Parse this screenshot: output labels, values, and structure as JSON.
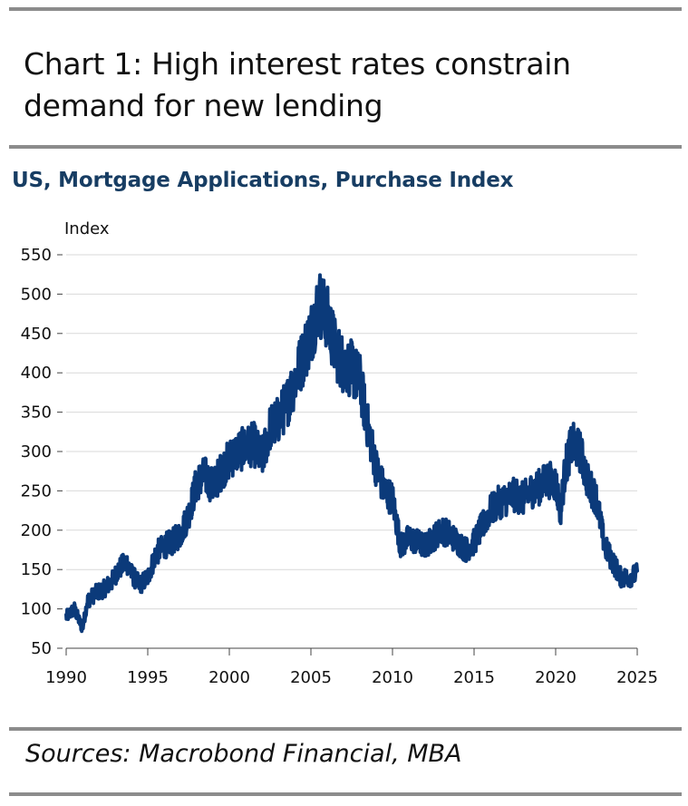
{
  "header": {
    "title_line1": "Chart 1: High interest rates constrain",
    "title_line2": "demand for new lending"
  },
  "footer": {
    "source": "Sources: Macrobond Financial, MBA"
  },
  "colors": {
    "series": "#0b3a7a",
    "rule": "#8c8c8c",
    "subtitle": "#173d63",
    "grid": "#d9d9d9"
  },
  "chart_data": {
    "type": "line",
    "title": "US, Mortgage Applications, Purchase Index",
    "ylabel": "Index",
    "xlabel": "",
    "xlim": [
      1990,
      2025
    ],
    "ylim": [
      50,
      550
    ],
    "yticks": [
      50,
      100,
      150,
      200,
      250,
      300,
      350,
      400,
      450,
      500,
      550
    ],
    "xticks": [
      1990,
      1995,
      2000,
      2005,
      2010,
      2015,
      2020,
      2025
    ],
    "grid": true,
    "legend": "none",
    "series": [
      {
        "name": "Purchase Index",
        "x": [
          1990.0,
          1990.5,
          1991.0,
          1991.3,
          1991.8,
          1992.3,
          1992.8,
          1993.2,
          1993.7,
          1994.0,
          1994.5,
          1995.0,
          1995.5,
          1996.0,
          1996.5,
          1997.0,
          1997.5,
          1998.0,
          1998.5,
          1999.0,
          1999.5,
          2000.0,
          2000.5,
          2001.0,
          2001.5,
          2002.0,
          2002.5,
          2003.0,
          2003.5,
          2004.0,
          2004.5,
          2005.0,
          2005.5,
          2006.0,
          2006.5,
          2007.0,
          2007.5,
          2008.0,
          2008.5,
          2009.0,
          2009.5,
          2010.0,
          2010.5,
          2011.0,
          2011.5,
          2012.0,
          2012.5,
          2013.0,
          2013.5,
          2014.0,
          2014.5,
          2015.0,
          2015.5,
          2016.0,
          2016.5,
          2017.0,
          2017.5,
          2018.0,
          2018.5,
          2019.0,
          2019.5,
          2020.0,
          2020.3,
          2020.6,
          2021.0,
          2021.5,
          2022.0,
          2022.5,
          2023.0,
          2023.5,
          2024.0,
          2024.5,
          2025.0
        ],
        "values": [
          90,
          100,
          75,
          110,
          120,
          125,
          135,
          150,
          160,
          145,
          130,
          140,
          170,
          180,
          185,
          195,
          220,
          260,
          270,
          255,
          275,
          290,
          300,
          305,
          310,
          290,
          330,
          340,
          360,
          390,
          420,
          450,
          490,
          470,
          430,
          410,
          405,
          390,
          330,
          280,
          250,
          240,
          180,
          190,
          185,
          180,
          190,
          200,
          195,
          185,
          175,
          185,
          205,
          225,
          235,
          240,
          245,
          240,
          250,
          255,
          265,
          260,
          225,
          280,
          310,
          300,
          260,
          240,
          180,
          160,
          140,
          140,
          145
        ]
      }
    ]
  }
}
